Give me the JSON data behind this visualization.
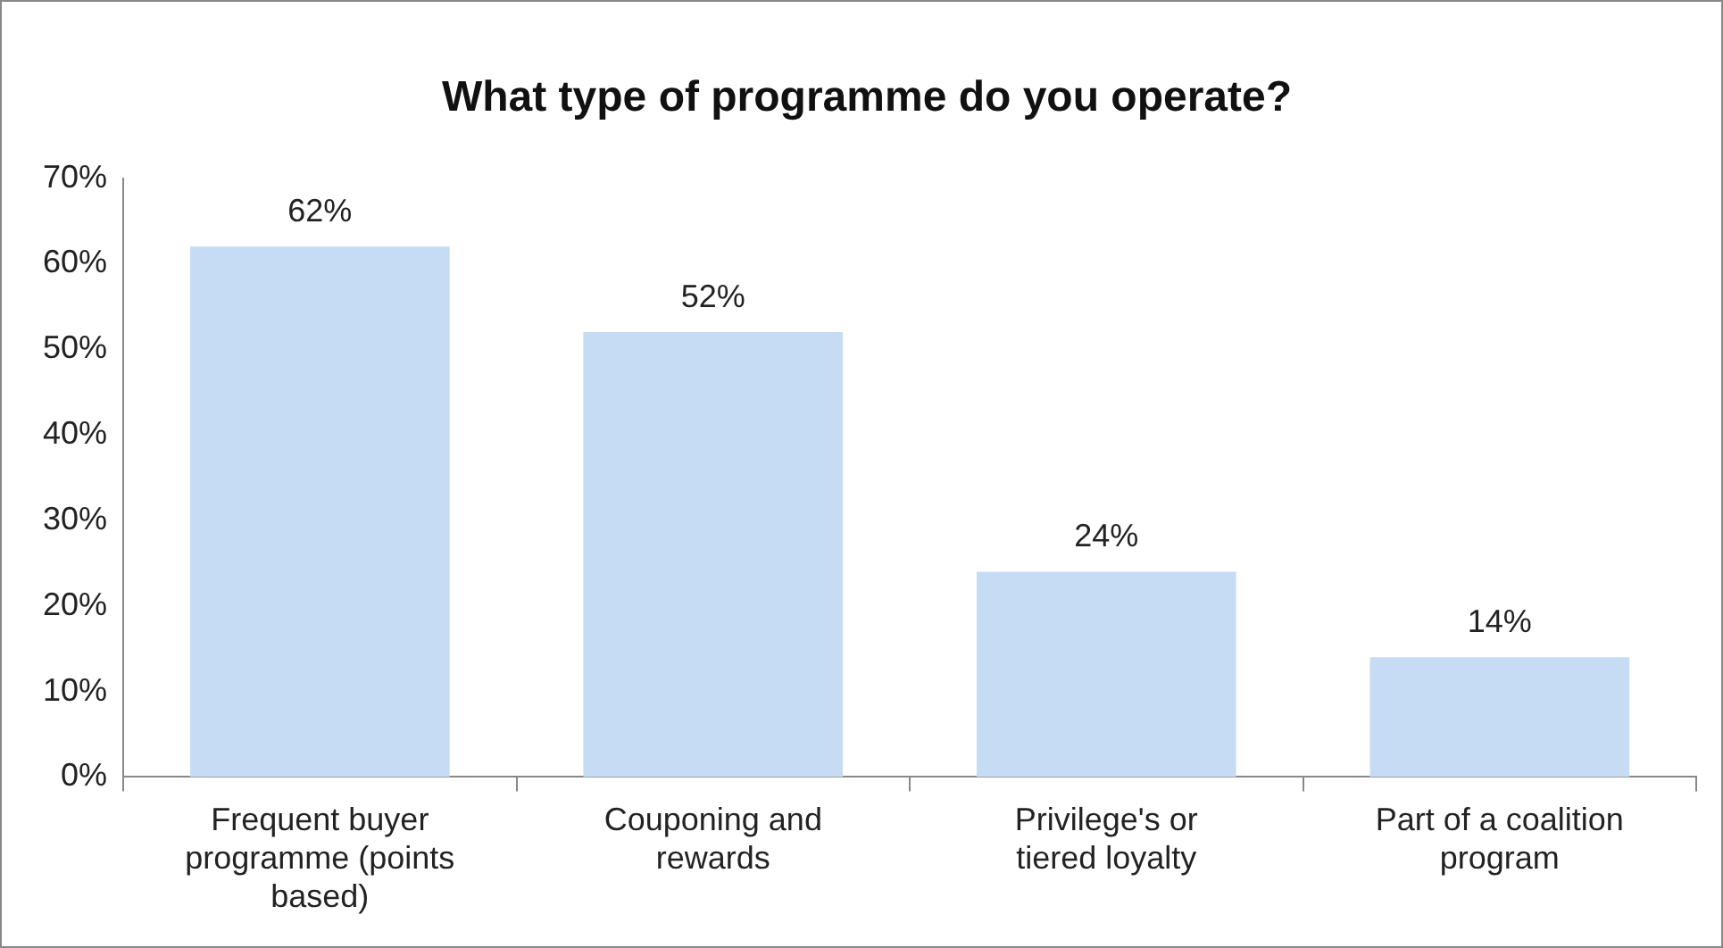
{
  "chart_data": {
    "type": "bar",
    "title": "What type of programme do you operate?",
    "categories": [
      "Frequent buyer programme (points based)",
      "Couponing and rewards",
      "Privilege's or tiered loyalty",
      "Part of a coalition program"
    ],
    "values": [
      62,
      52,
      24,
      14
    ],
    "value_labels": [
      "62%",
      "52%",
      "24%",
      "14%"
    ],
    "color": "#c6dcf5",
    "ylim": [
      0,
      70
    ],
    "yticks": [
      {
        "value": 0,
        "label": "0%"
      },
      {
        "value": 10,
        "label": "10%"
      },
      {
        "value": 20,
        "label": "20%"
      },
      {
        "value": 30,
        "label": "30%"
      },
      {
        "value": 40,
        "label": "40%"
      },
      {
        "value": 50,
        "label": "50%"
      },
      {
        "value": 60,
        "label": "60%"
      },
      {
        "value": 70,
        "label": "70%"
      }
    ],
    "grid": false,
    "legend": false
  }
}
